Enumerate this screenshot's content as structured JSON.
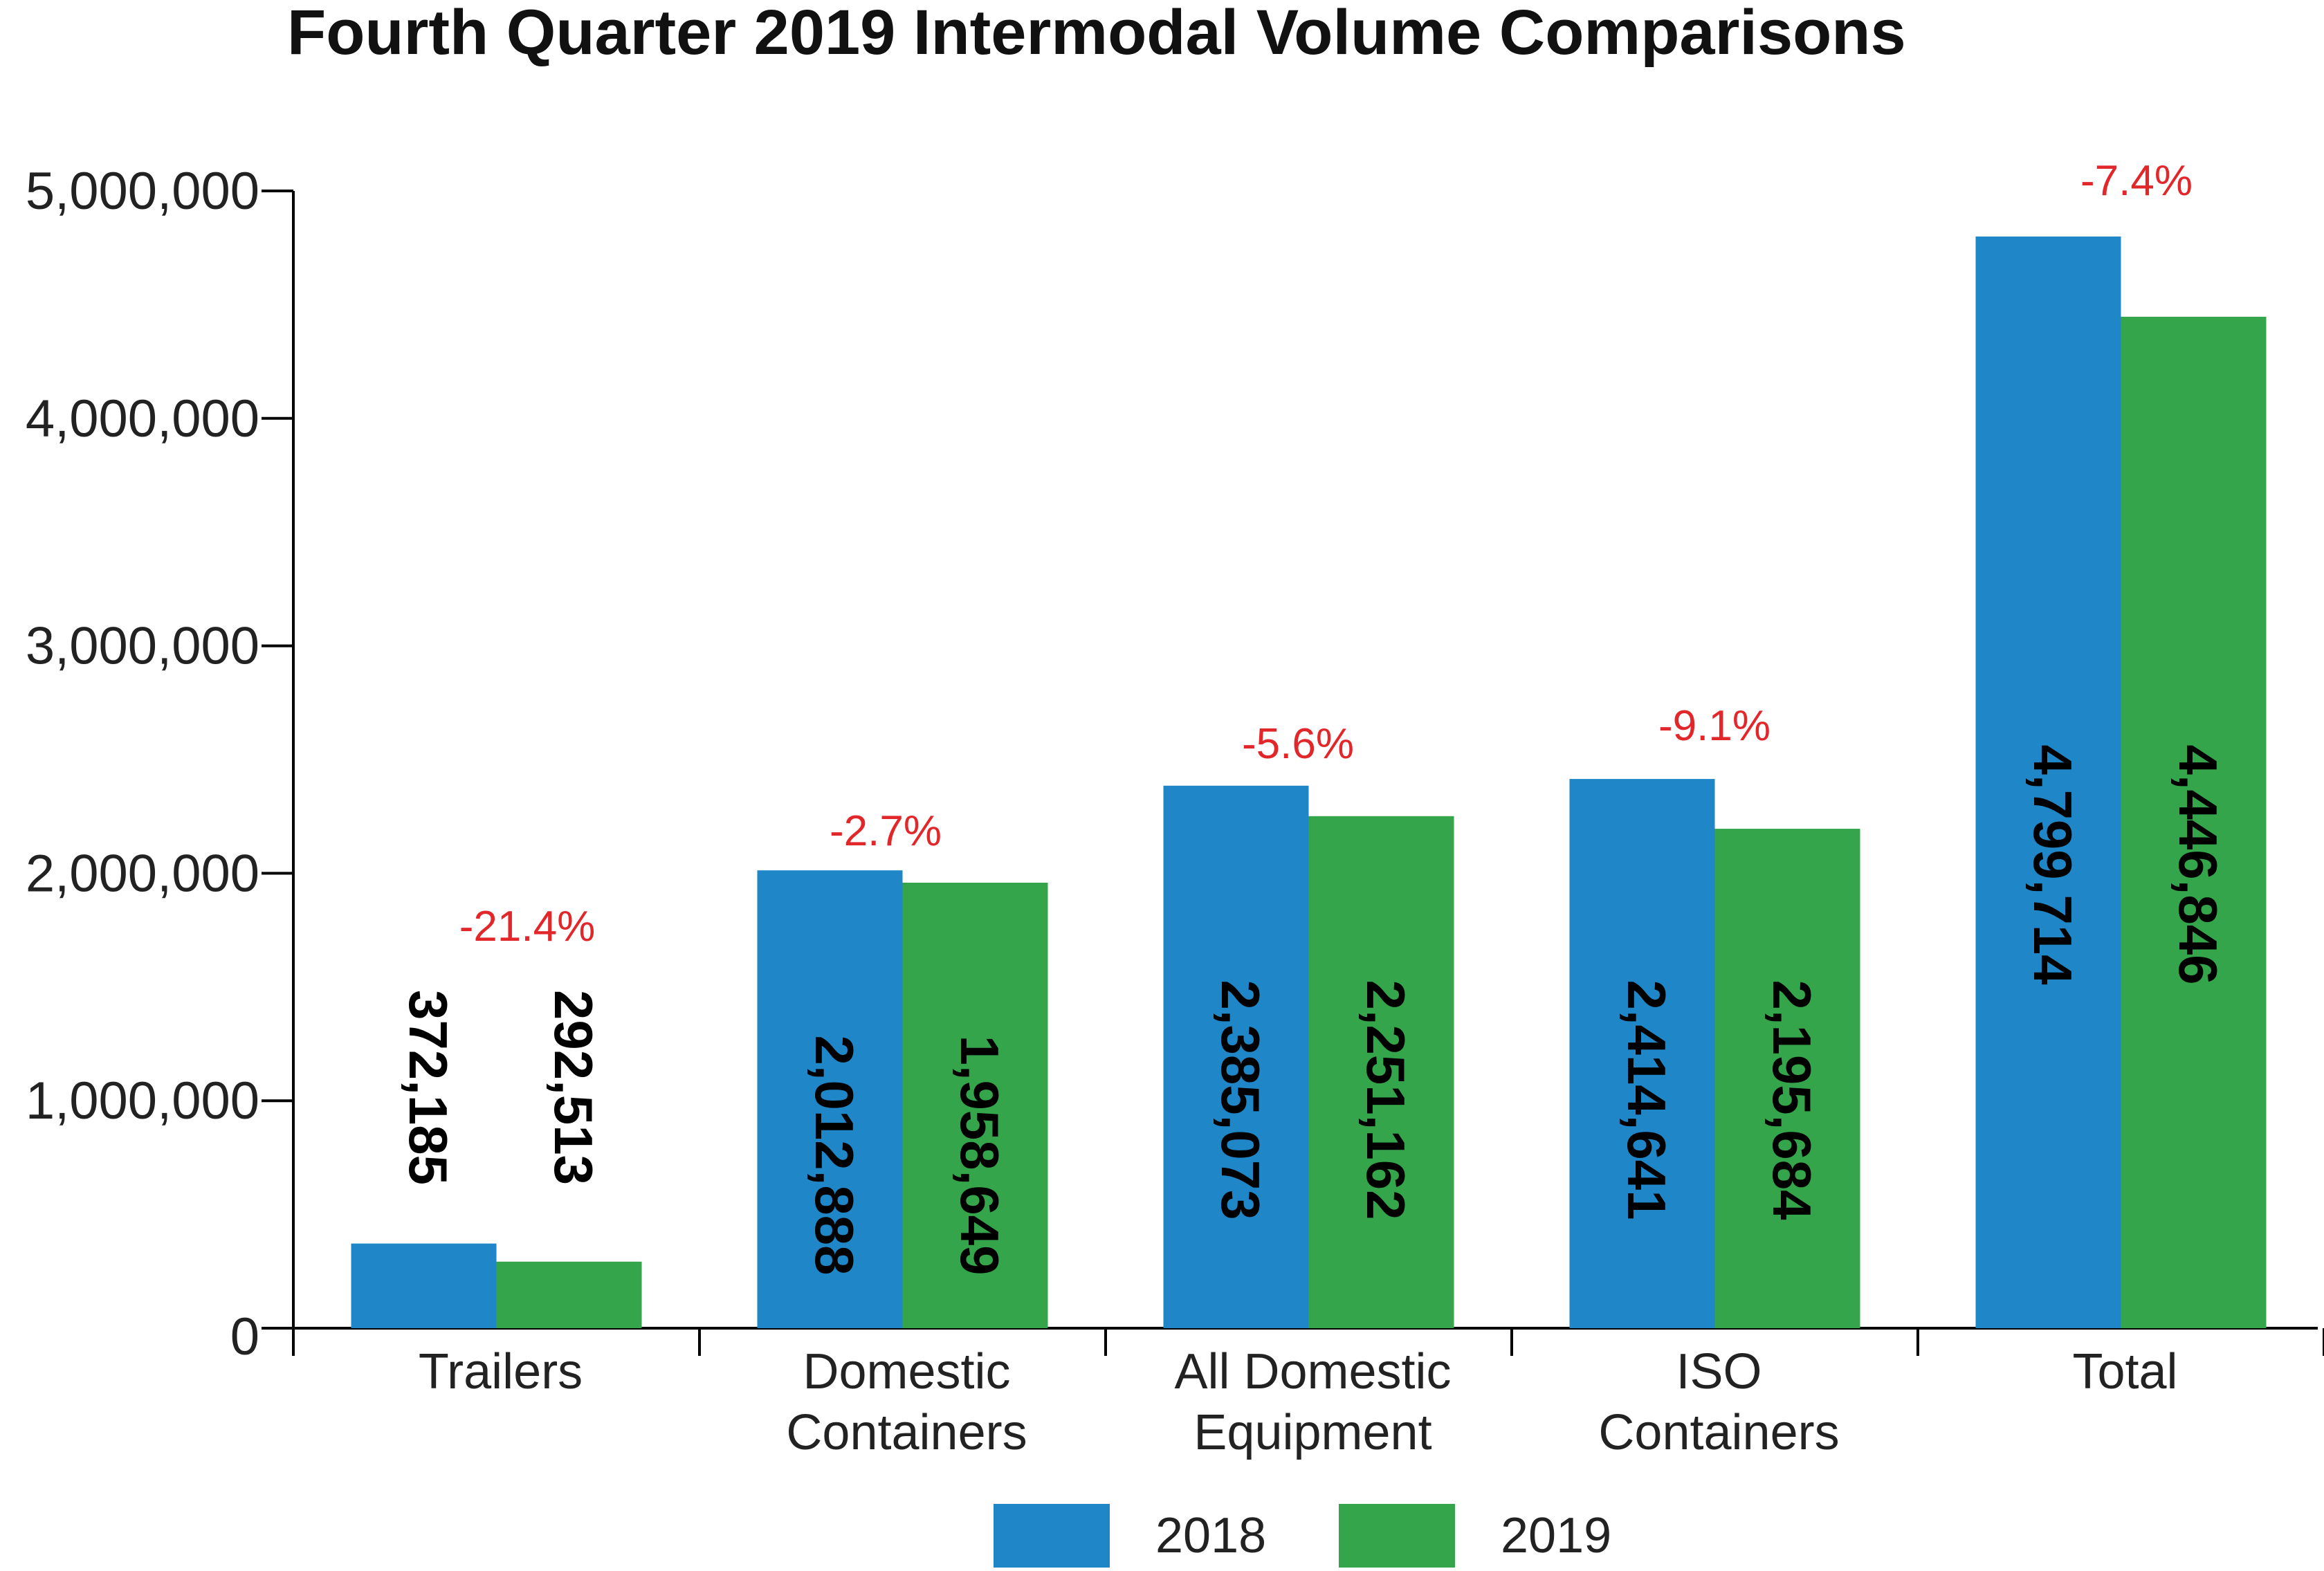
{
  "chart_data": {
    "type": "bar",
    "title": "Fourth Quarter 2019 Intermodal Volume Comparisons",
    "xlabel": "",
    "ylabel": "",
    "ylim": [
      0,
      5000000
    ],
    "yticks": [
      0,
      1000000,
      2000000,
      3000000,
      4000000,
      5000000
    ],
    "ytick_labels": [
      "0",
      "1,000,000",
      "2,000,000",
      "3,000,000",
      "4,000,000",
      "5,000,000"
    ],
    "categories": [
      [
        "Trailers"
      ],
      [
        "Domestic",
        "Containers"
      ],
      [
        "All Domestic",
        "Equipment"
      ],
      [
        "ISO",
        "Containers"
      ],
      [
        "Total"
      ]
    ],
    "series": [
      {
        "name": "2018",
        "color": "#1f86c8",
        "values": [
          372185,
          2012888,
          2385073,
          2414641,
          4799714
        ],
        "labels": [
          "372,185",
          "2,012,888",
          "2,385,073",
          "2,414,641",
          "4,799,714"
        ]
      },
      {
        "name": "2019",
        "color": "#34a54a",
        "values": [
          292513,
          1958649,
          2251162,
          2195684,
          4446846
        ],
        "labels": [
          "292,513",
          "1,958,649",
          "2,251,162",
          "2,195,684",
          "4,446,846"
        ]
      }
    ],
    "pct_change": [
      "-21.4%",
      "-2.7%",
      "-5.6%",
      "-9.1%",
      "-7.4%"
    ],
    "pct_color": "#e2272b",
    "legend_position": "bottom",
    "grid": false
  }
}
